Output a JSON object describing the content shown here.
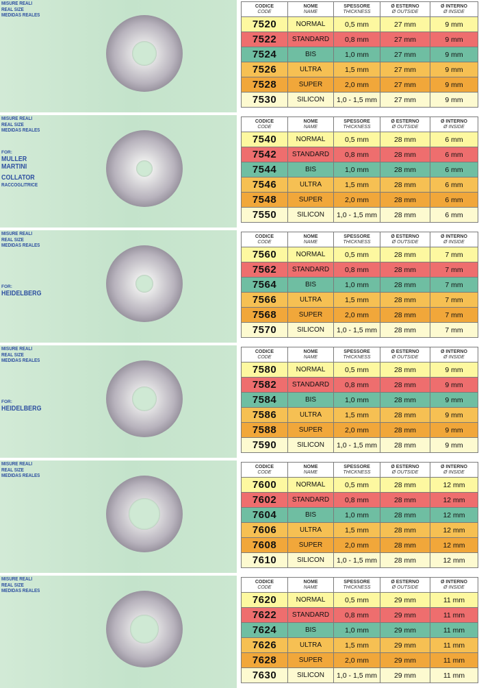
{
  "size_labels": [
    "MISURE REALI",
    "REAL SIZE",
    "MEDIDAS REALES"
  ],
  "table_header": {
    "code": [
      "CODICE",
      "CODE"
    ],
    "name": [
      "NOME",
      "NAME"
    ],
    "thickness": [
      "SPESSORE",
      "THICKNESS"
    ],
    "outside": [
      "Ø ESTERNO",
      "Ø OUTSIDE"
    ],
    "inside": [
      "Ø INTERNO",
      "Ø INSIDE"
    ]
  },
  "sections": [
    {
      "machine": null,
      "rows": [
        {
          "code": "7520",
          "name": "NORMAL",
          "thickness": "0,5 mm",
          "outside": "27 mm",
          "inside": "9 mm",
          "color": "#fdf8a0"
        },
        {
          "code": "7522",
          "name": "STANDARD",
          "thickness": "0,8 mm",
          "outside": "27 mm",
          "inside": "9 mm",
          "color": "#ee6e6e"
        },
        {
          "code": "7524",
          "name": "BIS",
          "thickness": "1,0 mm",
          "outside": "27 mm",
          "inside": "9 mm",
          "color": "#6fbea2"
        },
        {
          "code": "7526",
          "name": "ULTRA",
          "thickness": "1,5 mm",
          "outside": "27 mm",
          "inside": "9 mm",
          "color": "#f6c053"
        },
        {
          "code": "7528",
          "name": "SUPER",
          "thickness": "2,0 mm",
          "outside": "27 mm",
          "inside": "9 mm",
          "color": "#f1a73a"
        },
        {
          "code": "7530",
          "name": "SILICON",
          "thickness": "1,0 - 1,5 mm",
          "outside": "27 mm",
          "inside": "9 mm",
          "color": "#fdfad0"
        }
      ]
    },
    {
      "machine": {
        "for": "FOR:",
        "lines": [
          "MULLER",
          "MARTINI"
        ],
        "sub": [
          "COLLATOR",
          "RACCOGLITRICE"
        ]
      },
      "rows": [
        {
          "code": "7540",
          "name": "NORMAL",
          "thickness": "0,5 mm",
          "outside": "28 mm",
          "inside": "6 mm",
          "color": "#fdf8a0"
        },
        {
          "code": "7542",
          "name": "STANDARD",
          "thickness": "0,8 mm",
          "outside": "28 mm",
          "inside": "6 mm",
          "color": "#ee6e6e"
        },
        {
          "code": "7544",
          "name": "BIS",
          "thickness": "1,0 mm",
          "outside": "28 mm",
          "inside": "6 mm",
          "color": "#6fbea2"
        },
        {
          "code": "7546",
          "name": "ULTRA",
          "thickness": "1,5 mm",
          "outside": "28 mm",
          "inside": "6 mm",
          "color": "#f6c053"
        },
        {
          "code": "7548",
          "name": "SUPER",
          "thickness": "2,0 mm",
          "outside": "28 mm",
          "inside": "6 mm",
          "color": "#f1a73a"
        },
        {
          "code": "7550",
          "name": "SILICON",
          "thickness": "1,0 - 1,5 mm",
          "outside": "28 mm",
          "inside": "6 mm",
          "color": "#fdfad0"
        }
      ]
    },
    {
      "machine": {
        "for": "FOR:",
        "lines": [
          "HEIDELBERG"
        ],
        "sub": []
      },
      "rows": [
        {
          "code": "7560",
          "name": "NORMAL",
          "thickness": "0,5 mm",
          "outside": "28 mm",
          "inside": "7 mm",
          "color": "#fdf8a0"
        },
        {
          "code": "7562",
          "name": "STANDARD",
          "thickness": "0,8 mm",
          "outside": "28 mm",
          "inside": "7 mm",
          "color": "#ee6e6e"
        },
        {
          "code": "7564",
          "name": "BIS",
          "thickness": "1,0 mm",
          "outside": "28 mm",
          "inside": "7 mm",
          "color": "#6fbea2"
        },
        {
          "code": "7566",
          "name": "ULTRA",
          "thickness": "1,5 mm",
          "outside": "28 mm",
          "inside": "7 mm",
          "color": "#f6c053"
        },
        {
          "code": "7568",
          "name": "SUPER",
          "thickness": "2,0 mm",
          "outside": "28 mm",
          "inside": "7 mm",
          "color": "#f1a73a"
        },
        {
          "code": "7570",
          "name": "SILICON",
          "thickness": "1,0 - 1,5 mm",
          "outside": "28 mm",
          "inside": "7 mm",
          "color": "#fdfad0"
        }
      ]
    },
    {
      "machine": {
        "for": "FOR:",
        "lines": [
          "HEIDELBERG"
        ],
        "sub": []
      },
      "rows": [
        {
          "code": "7580",
          "name": "NORMAL",
          "thickness": "0,5 mm",
          "outside": "28 mm",
          "inside": "9 mm",
          "color": "#fdf8a0"
        },
        {
          "code": "7582",
          "name": "STANDARD",
          "thickness": "0,8 mm",
          "outside": "28 mm",
          "inside": "9 mm",
          "color": "#ee6e6e"
        },
        {
          "code": "7584",
          "name": "BIS",
          "thickness": "1,0 mm",
          "outside": "28 mm",
          "inside": "9 mm",
          "color": "#6fbea2"
        },
        {
          "code": "7586",
          "name": "ULTRA",
          "thickness": "1,5 mm",
          "outside": "28 mm",
          "inside": "9 mm",
          "color": "#f6c053"
        },
        {
          "code": "7588",
          "name": "SUPER",
          "thickness": "2,0 mm",
          "outside": "28 mm",
          "inside": "9 mm",
          "color": "#f1a73a"
        },
        {
          "code": "7590",
          "name": "SILICON",
          "thickness": "1,0 - 1,5 mm",
          "outside": "28 mm",
          "inside": "9 mm",
          "color": "#fdfad0"
        }
      ]
    },
    {
      "machine": null,
      "rows": [
        {
          "code": "7600",
          "name": "NORMAL",
          "thickness": "0,5 mm",
          "outside": "28 mm",
          "inside": "12 mm",
          "color": "#fdf8a0"
        },
        {
          "code": "7602",
          "name": "STANDARD",
          "thickness": "0,8 mm",
          "outside": "28 mm",
          "inside": "12 mm",
          "color": "#ee6e6e"
        },
        {
          "code": "7604",
          "name": "BIS",
          "thickness": "1,0 mm",
          "outside": "28 mm",
          "inside": "12 mm",
          "color": "#6fbea2"
        },
        {
          "code": "7606",
          "name": "ULTRA",
          "thickness": "1,5 mm",
          "outside": "28 mm",
          "inside": "12 mm",
          "color": "#f6c053"
        },
        {
          "code": "7608",
          "name": "SUPER",
          "thickness": "2,0 mm",
          "outside": "28 mm",
          "inside": "12 mm",
          "color": "#f1a73a"
        },
        {
          "code": "7610",
          "name": "SILICON",
          "thickness": "1,0 - 1,5 mm",
          "outside": "28 mm",
          "inside": "12 mm",
          "color": "#fdfad0"
        }
      ]
    },
    {
      "machine": null,
      "rows": [
        {
          "code": "7620",
          "name": "NORMAL",
          "thickness": "0,5 mm",
          "outside": "29 mm",
          "inside": "11 mm",
          "color": "#fdf8a0"
        },
        {
          "code": "7622",
          "name": "STANDARD",
          "thickness": "0,8 mm",
          "outside": "29 mm",
          "inside": "11 mm",
          "color": "#ee6e6e"
        },
        {
          "code": "7624",
          "name": "BIS",
          "thickness": "1,0 mm",
          "outside": "29 mm",
          "inside": "11 mm",
          "color": "#6fbea2"
        },
        {
          "code": "7626",
          "name": "ULTRA",
          "thickness": "1,5 mm",
          "outside": "29 mm",
          "inside": "11 mm",
          "color": "#f6c053"
        },
        {
          "code": "7628",
          "name": "SUPER",
          "thickness": "2,0 mm",
          "outside": "29 mm",
          "inside": "11 mm",
          "color": "#f1a73a"
        },
        {
          "code": "7630",
          "name": "SILICON",
          "thickness": "1,0 - 1,5 mm",
          "outside": "29 mm",
          "inside": "11 mm",
          "color": "#fdfad0"
        }
      ]
    }
  ]
}
